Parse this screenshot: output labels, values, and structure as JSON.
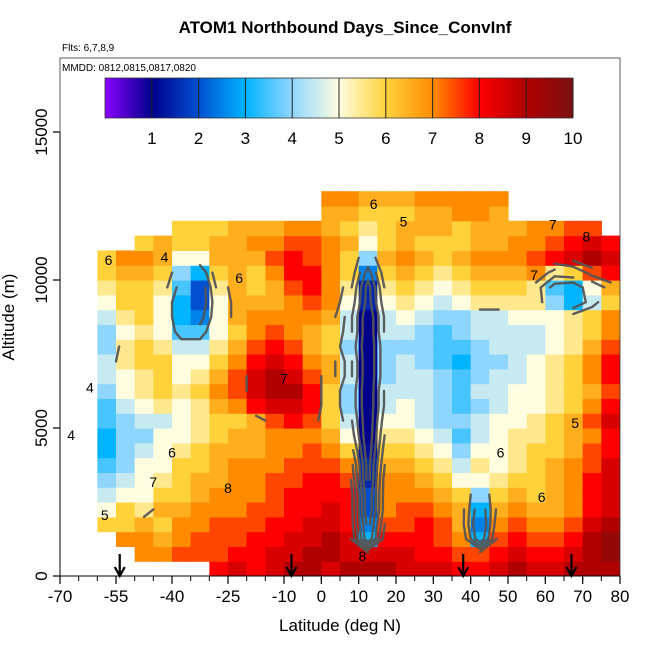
{
  "chart_data": {
    "type": "heatmap",
    "title": "ATOM1 Northbound Days_Since_ConvInf",
    "subtitle_flights": "Flts: 6,7,8,9",
    "subtitle_dates": "MMDD: 0812,0815,0817,0820",
    "xlabel": "Latitude (deg N)",
    "ylabel": "Altitude (m)",
    "xlim": [
      -70,
      80
    ],
    "ylim": [
      0,
      17500
    ],
    "x_ticks": [
      -70,
      -55,
      -40,
      -25,
      -10,
      0,
      10,
      20,
      30,
      40,
      50,
      60,
      70,
      80
    ],
    "x_tick_labels": [
      "-70",
      "-55",
      "-40",
      "-25",
      "-10",
      "0",
      "10",
      "20",
      "30",
      "40",
      "50",
      "60",
      "70",
      "80"
    ],
    "y_ticks": [
      0,
      5000,
      10000,
      15000
    ],
    "y_tick_labels": [
      "0",
      "5000",
      "10000",
      "15000"
    ],
    "colorbar": {
      "range": [
        0,
        10
      ],
      "ticks": [
        1,
        2,
        3,
        4,
        5,
        6,
        7,
        8,
        9,
        10
      ],
      "tick_labels": [
        "1",
        "2",
        "3",
        "4",
        "5",
        "6",
        "7",
        "8",
        "9",
        "10"
      ],
      "colors": [
        "#8b00ff",
        "#00008b",
        "#0050d0",
        "#00b4ff",
        "#8fd6ff",
        "#fffde0",
        "#ffd23c",
        "#ff8c00",
        "#ff0000",
        "#b00000",
        "#7a1010"
      ]
    },
    "arrow_latitudes": [
      -54,
      -8,
      38,
      67
    ],
    "grid": false,
    "lat_bins": [
      -70,
      -65,
      -60,
      -55,
      -50,
      -45,
      -40,
      -35,
      -30,
      -25,
      -20,
      -15,
      -10,
      -5,
      0,
      5,
      10,
      15,
      20,
      25,
      30,
      35,
      40,
      45,
      50,
      55,
      60,
      65,
      70,
      75
    ],
    "lat_bin_width": 5,
    "alt_bins": [
      0,
      500,
      1000,
      1500,
      2000,
      2500,
      3000,
      3500,
      4000,
      4500,
      5000,
      5500,
      6000,
      6500,
      7000,
      7500,
      8000,
      8500,
      9000,
      9500,
      10000,
      10500,
      11000,
      11500,
      12000,
      12500
    ],
    "alt_bin_height": 500,
    "values": [
      [
        null,
        null,
        null,
        null,
        null,
        null,
        null,
        null,
        8.0,
        8.5,
        8.0,
        8.5,
        9.0,
        9.0,
        8.5,
        9.0,
        9.0,
        9.0,
        8.5,
        8.5,
        8.5,
        8.0,
        8.0,
        8.5,
        9.0,
        8.5,
        8.5,
        9.0,
        9.0,
        9.0
      ],
      [
        null,
        null,
        null,
        null,
        7.0,
        7.0,
        7.5,
        7.5,
        7.5,
        8.0,
        8.0,
        8.5,
        8.5,
        9.0,
        9.0,
        8.5,
        8.5,
        8.5,
        8.5,
        8.0,
        8.0,
        7.5,
        7.5,
        8.0,
        8.5,
        8.0,
        8.0,
        8.5,
        9.0,
        9.5
      ],
      [
        null,
        null,
        null,
        7.0,
        7.0,
        6.5,
        7.0,
        7.5,
        7.5,
        7.5,
        8.0,
        8.0,
        8.5,
        8.5,
        9.0,
        8.5,
        3.0,
        8.0,
        8.0,
        8.0,
        7.5,
        7.0,
        3.0,
        7.5,
        8.0,
        7.5,
        7.5,
        8.0,
        9.0,
        9.5
      ],
      [
        null,
        null,
        6.0,
        6.0,
        6.5,
        6.0,
        7.0,
        7.0,
        7.5,
        7.5,
        7.5,
        8.0,
        8.0,
        8.5,
        8.5,
        8.0,
        2.5,
        7.5,
        7.5,
        8.0,
        7.5,
        6.5,
        2.5,
        7.0,
        7.5,
        7.0,
        7.0,
        7.5,
        8.5,
        9.0
      ],
      [
        null,
        null,
        5.0,
        6.0,
        5.5,
        6.5,
        6.5,
        7.0,
        7.0,
        7.0,
        7.5,
        7.5,
        8.0,
        8.0,
        8.5,
        8.0,
        2.0,
        7.0,
        7.5,
        7.5,
        7.0,
        6.5,
        3.0,
        6.5,
        7.0,
        6.5,
        6.5,
        7.0,
        8.0,
        8.5
      ],
      [
        null,
        null,
        4.5,
        5.0,
        5.0,
        6.0,
        6.0,
        6.5,
        7.0,
        7.0,
        7.0,
        7.5,
        8.0,
        8.0,
        8.0,
        8.0,
        2.0,
        7.0,
        7.0,
        7.0,
        6.5,
        6.0,
        4.0,
        6.0,
        6.5,
        6.0,
        6.5,
        7.0,
        8.0,
        8.5
      ],
      [
        null,
        null,
        4.0,
        4.5,
        5.0,
        5.5,
        6.0,
        6.5,
        6.5,
        7.0,
        7.0,
        7.5,
        7.5,
        8.0,
        8.0,
        7.5,
        1.5,
        7.0,
        7.0,
        6.5,
        6.0,
        5.0,
        5.0,
        5.5,
        6.0,
        6.0,
        6.5,
        7.0,
        8.0,
        8.5
      ],
      [
        null,
        null,
        3.5,
        4.0,
        5.0,
        5.0,
        6.0,
        6.0,
        6.5,
        7.0,
        7.0,
        7.0,
        7.5,
        7.5,
        7.5,
        7.0,
        1.5,
        6.5,
        6.5,
        6.0,
        5.5,
        4.5,
        5.5,
        5.0,
        5.5,
        6.0,
        6.5,
        7.0,
        7.5,
        8.5
      ],
      [
        null,
        null,
        3.0,
        4.0,
        4.5,
        5.0,
        5.5,
        6.0,
        6.5,
        6.5,
        6.5,
        7.0,
        7.0,
        7.5,
        7.0,
        6.0,
        1.2,
        6.0,
        6.0,
        5.5,
        5.0,
        4.0,
        5.0,
        5.0,
        5.5,
        6.0,
        6.0,
        6.5,
        7.5,
        8.0
      ],
      [
        null,
        null,
        3.0,
        4.0,
        4.0,
        5.0,
        5.0,
        5.5,
        6.0,
        6.5,
        6.5,
        7.0,
        7.0,
        7.0,
        6.5,
        5.0,
        1.0,
        5.5,
        5.5,
        5.0,
        4.5,
        3.5,
        4.5,
        5.0,
        5.5,
        5.5,
        6.0,
        6.5,
        7.0,
        8.0
      ],
      [
        null,
        null,
        3.5,
        4.0,
        4.5,
        4.5,
        5.0,
        5.5,
        6.0,
        6.0,
        6.5,
        7.5,
        8.0,
        7.5,
        6.0,
        4.5,
        1.0,
        5.0,
        5.0,
        4.5,
        4.0,
        4.0,
        4.5,
        5.0,
        5.0,
        5.5,
        6.0,
        6.5,
        7.5,
        8.5
      ],
      [
        null,
        null,
        3.5,
        4.5,
        5.0,
        5.5,
        5.0,
        5.5,
        6.5,
        7.0,
        8.0,
        8.5,
        8.5,
        8.0,
        6.0,
        4.0,
        1.0,
        4.5,
        5.0,
        4.5,
        4.0,
        3.5,
        4.0,
        4.5,
        5.0,
        5.0,
        5.5,
        6.0,
        7.0,
        8.0
      ],
      [
        null,
        null,
        4.0,
        5.0,
        5.5,
        6.0,
        5.5,
        6.0,
        7.0,
        7.5,
        8.5,
        9.0,
        9.0,
        8.0,
        6.0,
        4.0,
        1.0,
        4.5,
        4.5,
        4.5,
        4.0,
        3.5,
        4.5,
        4.5,
        5.0,
        5.0,
        5.5,
        6.0,
        6.5,
        7.5
      ],
      [
        null,
        null,
        4.5,
        5.0,
        5.5,
        6.0,
        5.0,
        5.5,
        6.5,
        7.5,
        8.5,
        9.0,
        8.5,
        7.5,
        6.5,
        4.5,
        1.0,
        4.0,
        4.5,
        4.5,
        4.0,
        3.5,
        4.0,
        4.5,
        4.5,
        5.0,
        5.5,
        6.0,
        7.0,
        8.0
      ],
      [
        null,
        null,
        4.5,
        5.5,
        6.0,
        6.0,
        5.0,
        5.0,
        6.0,
        7.0,
        8.0,
        8.5,
        8.0,
        7.0,
        6.5,
        4.5,
        1.0,
        4.0,
        4.5,
        4.0,
        3.5,
        3.0,
        4.0,
        4.0,
        4.5,
        5.0,
        5.5,
        6.0,
        7.0,
        8.0
      ],
      [
        null,
        null,
        4.0,
        5.5,
        6.0,
        5.5,
        4.5,
        4.5,
        5.5,
        6.5,
        7.5,
        8.0,
        7.5,
        6.5,
        6.0,
        4.0,
        1.0,
        4.0,
        4.0,
        4.0,
        3.5,
        3.5,
        4.0,
        4.5,
        4.5,
        4.5,
        5.0,
        5.5,
        6.5,
        7.5
      ],
      [
        null,
        null,
        4.0,
        5.0,
        5.5,
        5.0,
        3.5,
        3.5,
        5.0,
        6.0,
        7.0,
        7.5,
        7.0,
        6.5,
        6.0,
        4.5,
        1.0,
        4.5,
        4.5,
        4.0,
        3.5,
        4.0,
        4.5,
        4.5,
        4.5,
        4.5,
        5.0,
        5.5,
        6.0,
        7.0
      ],
      [
        null,
        null,
        4.5,
        5.5,
        6.0,
        5.0,
        3.0,
        2.5,
        5.0,
        6.5,
        7.0,
        7.0,
        7.0,
        7.0,
        6.5,
        4.5,
        1.0,
        4.5,
        5.0,
        4.5,
        4.0,
        4.0,
        4.5,
        4.5,
        5.0,
        5.0,
        5.0,
        5.5,
        6.0,
        7.0
      ],
      [
        null,
        null,
        5.0,
        6.0,
        6.0,
        5.0,
        3.0,
        2.0,
        5.0,
        6.5,
        6.5,
        6.5,
        7.0,
        7.5,
        7.0,
        5.0,
        1.5,
        5.0,
        5.5,
        5.0,
        4.5,
        5.0,
        5.5,
        5.5,
        5.5,
        5.5,
        4.0,
        3.0,
        4.5,
        6.0
      ],
      [
        null,
        null,
        5.5,
        6.0,
        6.0,
        5.5,
        3.5,
        2.0,
        5.5,
        6.5,
        6.0,
        6.5,
        7.5,
        8.0,
        7.0,
        5.5,
        1.5,
        5.5,
        6.0,
        5.5,
        5.0,
        5.5,
        6.0,
        6.0,
        6.0,
        5.5,
        3.5,
        3.0,
        5.0,
        6.5
      ],
      [
        null,
        null,
        6.0,
        6.5,
        6.5,
        6.0,
        4.0,
        3.0,
        6.0,
        6.5,
        6.0,
        7.0,
        8.0,
        8.0,
        7.0,
        6.0,
        2.5,
        6.0,
        6.5,
        6.0,
        5.5,
        6.0,
        6.5,
        6.5,
        6.5,
        7.0,
        5.5,
        6.0,
        7.5,
        8.0
      ],
      [
        null,
        null,
        6.0,
        7.0,
        7.0,
        6.5,
        5.0,
        5.0,
        6.5,
        6.5,
        6.5,
        7.5,
        8.0,
        7.5,
        7.0,
        6.0,
        4.0,
        6.5,
        7.0,
        6.5,
        6.0,
        6.5,
        7.0,
        7.0,
        7.0,
        7.5,
        8.0,
        8.5,
        9.0,
        8.5
      ],
      [
        null,
        null,
        null,
        null,
        6.0,
        6.5,
        6.0,
        6.0,
        6.5,
        6.5,
        7.0,
        7.0,
        7.5,
        7.5,
        7.0,
        6.5,
        5.0,
        6.0,
        6.5,
        6.0,
        6.0,
        6.0,
        6.5,
        6.5,
        7.0,
        7.0,
        7.5,
        8.0,
        8.5,
        8.0
      ],
      [
        null,
        null,
        null,
        null,
        null,
        null,
        6.0,
        6.0,
        6.0,
        6.5,
        6.5,
        6.5,
        7.0,
        7.0,
        6.5,
        6.0,
        5.5,
        6.0,
        6.5,
        6.5,
        6.5,
        6.0,
        6.5,
        6.5,
        6.5,
        7.0,
        7.0,
        7.5,
        7.5,
        null
      ],
      [
        null,
        null,
        null,
        null,
        null,
        null,
        null,
        null,
        null,
        null,
        null,
        null,
        null,
        null,
        6.5,
        6.5,
        6.0,
        6.0,
        6.0,
        6.5,
        6.5,
        7.0,
        7.0,
        6.5,
        null,
        null,
        null,
        null,
        null,
        null
      ],
      [
        null,
        null,
        null,
        null,
        null,
        null,
        null,
        null,
        null,
        null,
        null,
        null,
        null,
        null,
        7.0,
        7.0,
        6.5,
        6.5,
        6.5,
        7.0,
        7.0,
        7.0,
        7.0,
        7.0,
        null,
        null,
        null,
        null,
        null,
        null
      ]
    ],
    "contour_labels": [
      {
        "text": "6",
        "lat": 14,
        "alt": 12400
      },
      {
        "text": "5",
        "lat": 22,
        "alt": 11800
      },
      {
        "text": "7",
        "lat": 62,
        "alt": 11700
      },
      {
        "text": "8",
        "lat": 71,
        "alt": 11300
      },
      {
        "text": "6",
        "lat": -57,
        "alt": 10500
      },
      {
        "text": "4",
        "lat": -42,
        "alt": 10600
      },
      {
        "text": "6",
        "lat": -22,
        "alt": 9900
      },
      {
        "text": "7",
        "lat": 57,
        "alt": 10000
      },
      {
        "text": "4",
        "lat": -62,
        "alt": 6200
      },
      {
        "text": "7",
        "lat": -10,
        "alt": 6500
      },
      {
        "text": "5",
        "lat": 68,
        "alt": 5000
      },
      {
        "text": "6",
        "lat": -40,
        "alt": 4000
      },
      {
        "text": "6",
        "lat": 48,
        "alt": 4000
      },
      {
        "text": "7",
        "lat": -45,
        "alt": 3000
      },
      {
        "text": "8",
        "lat": -25,
        "alt": 2800
      },
      {
        "text": "6",
        "lat": 59,
        "alt": 2500
      },
      {
        "text": "5",
        "lat": -58,
        "alt": 1900
      },
      {
        "text": "4",
        "lat": -67,
        "alt": 4600
      },
      {
        "text": "8",
        "lat": 11,
        "alt": 500
      }
    ]
  }
}
